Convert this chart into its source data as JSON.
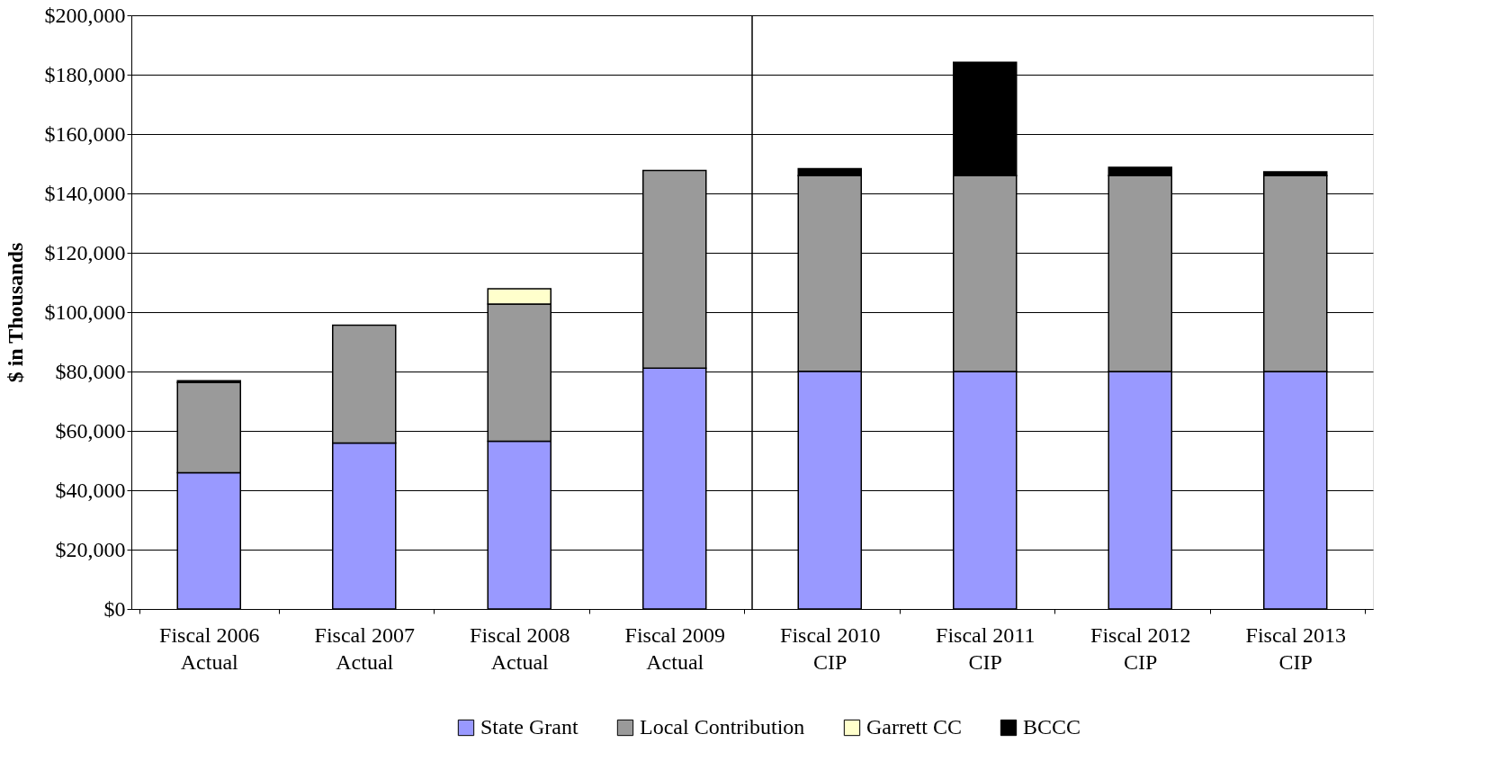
{
  "chart_data": {
    "type": "bar",
    "stacked": true,
    "ylabel": "$ in Thousands",
    "categories": [
      "Fiscal 2006\nActual",
      "Fiscal 2007\nActual",
      "Fiscal 2008\nActual",
      "Fiscal 2009\nActual",
      "Fiscal 2010\nCIP",
      "Fiscal 2011\nCIP",
      "Fiscal 2012\nCIP",
      "Fiscal 2013\nCIP"
    ],
    "series": [
      {
        "name": "State Grant",
        "color": "#9999ff",
        "values": [
          45900,
          55900,
          56500,
          81100,
          80100,
          80000,
          80000,
          80000
        ]
      },
      {
        "name": "Local Contribution",
        "color": "#9a9a9a",
        "values": [
          30400,
          39700,
          46200,
          66600,
          65900,
          66000,
          66000,
          66000
        ]
      },
      {
        "name": "Garrett CC",
        "color": "#ffffcc",
        "values": [
          null,
          null,
          5200,
          null,
          null,
          null,
          null,
          null
        ]
      },
      {
        "name": "BCCC",
        "color": "#000000",
        "values": [
          600,
          null,
          null,
          null,
          2300,
          38200,
          2800,
          1300
        ]
      }
    ],
    "ylim": [
      0,
      200000
    ],
    "yticks": [
      {
        "value": 0,
        "label": "$0"
      },
      {
        "value": 20000,
        "label": "$20,000"
      },
      {
        "value": 40000,
        "label": "$40,000"
      },
      {
        "value": 60000,
        "label": "$60,000"
      },
      {
        "value": 80000,
        "label": "$80,000"
      },
      {
        "value": 100000,
        "label": "$100,000"
      },
      {
        "value": 120000,
        "label": "$120,000"
      },
      {
        "value": 140000,
        "label": "$140,000"
      },
      {
        "value": 160000,
        "label": "$160,000"
      },
      {
        "value": 180000,
        "label": "$180,000"
      },
      {
        "value": 200000,
        "label": "$200,000"
      }
    ],
    "grid": "y",
    "legend": "bottom",
    "ref_lines": [
      {
        "axis": "x",
        "value": "Fiscal 2010\nCIP",
        "color": "#000000"
      }
    ]
  }
}
